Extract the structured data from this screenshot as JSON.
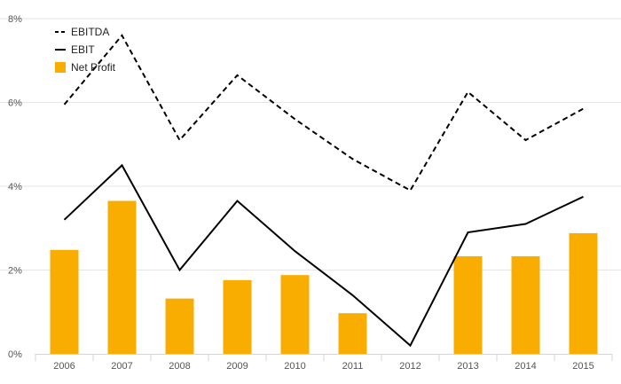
{
  "chart_data": {
    "type": "bar",
    "categories": [
      "2006",
      "2007",
      "2008",
      "2009",
      "2010",
      "2011",
      "2012",
      "2013",
      "2014",
      "2015"
    ],
    "series": [
      {
        "name": "EBITDA",
        "kind": "line",
        "style": "dashed",
        "color": "#000000",
        "values": [
          5.95,
          7.6,
          5.1,
          6.65,
          5.6,
          4.65,
          3.9,
          6.25,
          5.1,
          5.85
        ]
      },
      {
        "name": "EBIT",
        "kind": "line",
        "style": "solid",
        "color": "#000000",
        "values": [
          3.2,
          4.5,
          2.0,
          3.65,
          2.45,
          1.4,
          0.2,
          2.9,
          3.1,
          3.75
        ]
      },
      {
        "name": "Net Profit",
        "kind": "bar",
        "color": "#f9ad00",
        "values": [
          2.48,
          3.65,
          1.32,
          1.76,
          1.88,
          0.97,
          0,
          2.33,
          2.33,
          2.88
        ]
      }
    ],
    "yticks": [
      "0%",
      "2%",
      "4%",
      "6%",
      "8%"
    ],
    "ylim": [
      0,
      8
    ],
    "grid": true,
    "legend_position": "top-left"
  }
}
